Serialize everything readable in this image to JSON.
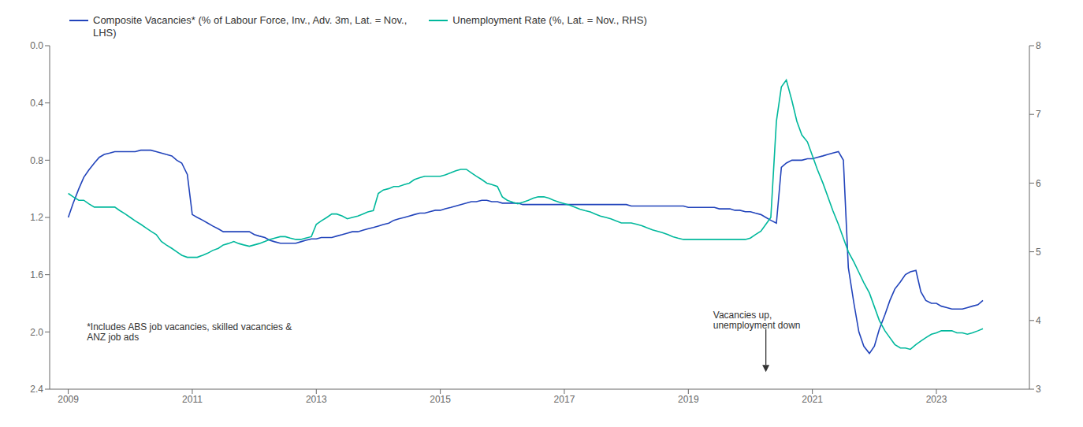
{
  "chart_data": {
    "type": "line",
    "x": [
      2009.0,
      2009.08,
      2009.17,
      2009.25,
      2009.33,
      2009.42,
      2009.5,
      2009.58,
      2009.67,
      2009.75,
      2009.83,
      2009.92,
      2010.0,
      2010.08,
      2010.17,
      2010.25,
      2010.33,
      2010.42,
      2010.5,
      2010.58,
      2010.67,
      2010.75,
      2010.83,
      2010.92,
      2011.0,
      2011.08,
      2011.17,
      2011.25,
      2011.33,
      2011.42,
      2011.5,
      2011.58,
      2011.67,
      2011.75,
      2011.83,
      2011.92,
      2012.0,
      2012.08,
      2012.17,
      2012.25,
      2012.33,
      2012.42,
      2012.5,
      2012.58,
      2012.67,
      2012.75,
      2012.83,
      2012.92,
      2013.0,
      2013.08,
      2013.17,
      2013.25,
      2013.33,
      2013.42,
      2013.5,
      2013.58,
      2013.67,
      2013.75,
      2013.83,
      2013.92,
      2014.0,
      2014.08,
      2014.17,
      2014.25,
      2014.33,
      2014.42,
      2014.5,
      2014.58,
      2014.67,
      2014.75,
      2014.83,
      2014.92,
      2015.0,
      2015.08,
      2015.17,
      2015.25,
      2015.33,
      2015.42,
      2015.5,
      2015.58,
      2015.67,
      2015.75,
      2015.83,
      2015.92,
      2016.0,
      2016.08,
      2016.17,
      2016.25,
      2016.33,
      2016.42,
      2016.5,
      2016.58,
      2016.67,
      2016.75,
      2016.83,
      2016.92,
      2017.0,
      2017.08,
      2017.17,
      2017.25,
      2017.33,
      2017.42,
      2017.5,
      2017.58,
      2017.67,
      2017.75,
      2017.83,
      2017.92,
      2018.0,
      2018.08,
      2018.17,
      2018.25,
      2018.33,
      2018.42,
      2018.5,
      2018.58,
      2018.67,
      2018.75,
      2018.83,
      2018.92,
      2019.0,
      2019.08,
      2019.17,
      2019.25,
      2019.33,
      2019.42,
      2019.5,
      2019.58,
      2019.67,
      2019.75,
      2019.83,
      2019.92,
      2020.0,
      2020.08,
      2020.17,
      2020.25,
      2020.33,
      2020.42,
      2020.5,
      2020.58,
      2020.67,
      2020.75,
      2020.83,
      2020.92,
      2021.0,
      2021.08,
      2021.17,
      2021.25,
      2021.33,
      2021.42,
      2021.5,
      2021.58,
      2021.67,
      2021.75,
      2021.83,
      2021.92,
      2022.0,
      2022.08,
      2022.17,
      2022.25,
      2022.33,
      2022.42,
      2022.5,
      2022.58,
      2022.67,
      2022.75,
      2022.83,
      2022.92,
      2023.0,
      2023.08,
      2023.17,
      2023.25,
      2023.33,
      2023.42,
      2023.5,
      2023.58,
      2023.67,
      2023.75
    ],
    "xlim": [
      2008.7,
      2024.5
    ],
    "xticks": [
      2009,
      2011,
      2013,
      2015,
      2017,
      2019,
      2021,
      2023
    ],
    "ylim": [
      2.4,
      0.0
    ],
    "yticks": [
      {
        "value": 0.0,
        "label": "0.0"
      },
      0.4,
      0.8,
      1.2,
      1.6,
      {
        "value": 2.0,
        "label": "2.0"
      },
      2.4
    ],
    "y2lim": [
      3,
      8
    ],
    "y2ticks": [
      3,
      4,
      5,
      6,
      7,
      8
    ],
    "grid": false,
    "legend": "top",
    "series": [
      {
        "name": "Composite Vacancies* (% of Labour Force, Inv., Adv. 3m, Lat. = Nov.,\nLHS)",
        "color": "#2244bb",
        "values": [
          1.2,
          1.1,
          1.0,
          0.92,
          0.87,
          0.82,
          0.78,
          0.76,
          0.75,
          0.74,
          0.74,
          0.74,
          0.74,
          0.74,
          0.73,
          0.73,
          0.73,
          0.74,
          0.75,
          0.76,
          0.77,
          0.8,
          0.82,
          0.9,
          1.18,
          1.2,
          1.22,
          1.24,
          1.26,
          1.28,
          1.3,
          1.3,
          1.3,
          1.3,
          1.3,
          1.3,
          1.32,
          1.33,
          1.34,
          1.36,
          1.37,
          1.38,
          1.38,
          1.38,
          1.38,
          1.37,
          1.36,
          1.35,
          1.35,
          1.34,
          1.34,
          1.34,
          1.33,
          1.32,
          1.31,
          1.3,
          1.3,
          1.29,
          1.28,
          1.27,
          1.26,
          1.25,
          1.24,
          1.22,
          1.21,
          1.2,
          1.19,
          1.18,
          1.17,
          1.17,
          1.16,
          1.15,
          1.15,
          1.14,
          1.13,
          1.12,
          1.11,
          1.1,
          1.09,
          1.09,
          1.08,
          1.08,
          1.09,
          1.09,
          1.1,
          1.1,
          1.1,
          1.1,
          1.11,
          1.11,
          1.11,
          1.11,
          1.11,
          1.11,
          1.11,
          1.11,
          1.11,
          1.11,
          1.11,
          1.11,
          1.11,
          1.11,
          1.11,
          1.11,
          1.11,
          1.11,
          1.11,
          1.11,
          1.11,
          1.12,
          1.12,
          1.12,
          1.12,
          1.12,
          1.12,
          1.12,
          1.12,
          1.12,
          1.12,
          1.12,
          1.13,
          1.13,
          1.13,
          1.13,
          1.13,
          1.13,
          1.14,
          1.14,
          1.14,
          1.15,
          1.15,
          1.16,
          1.16,
          1.17,
          1.18,
          1.2,
          1.22,
          1.24,
          0.85,
          0.82,
          0.8,
          0.8,
          0.8,
          0.79,
          0.79,
          0.78,
          0.77,
          0.76,
          0.75,
          0.74,
          0.8,
          1.55,
          1.8,
          2.0,
          2.1,
          2.15,
          2.1,
          1.98,
          1.88,
          1.78,
          1.7,
          1.65,
          1.6,
          1.58,
          1.57,
          1.72,
          1.78,
          1.8,
          1.8,
          1.82,
          1.83,
          1.84,
          1.84,
          1.84,
          1.83,
          1.82,
          1.81,
          1.78
        ]
      },
      {
        "name": "Unemployment Rate (%, Lat. = Nov., RHS)",
        "color": "#00b89c",
        "axis": "y2",
        "values": [
          5.85,
          5.8,
          5.75,
          5.75,
          5.7,
          5.65,
          5.65,
          5.65,
          5.65,
          5.65,
          5.6,
          5.55,
          5.5,
          5.45,
          5.4,
          5.35,
          5.3,
          5.25,
          5.15,
          5.1,
          5.05,
          5.0,
          4.95,
          4.92,
          4.92,
          4.92,
          4.95,
          4.98,
          5.02,
          5.05,
          5.1,
          5.12,
          5.15,
          5.12,
          5.1,
          5.08,
          5.1,
          5.12,
          5.15,
          5.18,
          5.2,
          5.22,
          5.22,
          5.2,
          5.18,
          5.18,
          5.2,
          5.22,
          5.4,
          5.45,
          5.5,
          5.55,
          5.55,
          5.52,
          5.48,
          5.5,
          5.52,
          5.55,
          5.58,
          5.6,
          5.85,
          5.9,
          5.92,
          5.95,
          5.95,
          5.98,
          6.0,
          6.05,
          6.08,
          6.1,
          6.1,
          6.1,
          6.1,
          6.12,
          6.15,
          6.18,
          6.2,
          6.2,
          6.15,
          6.1,
          6.05,
          6.0,
          5.98,
          5.95,
          5.8,
          5.75,
          5.72,
          5.7,
          5.72,
          5.75,
          5.78,
          5.8,
          5.8,
          5.78,
          5.75,
          5.72,
          5.7,
          5.68,
          5.65,
          5.62,
          5.6,
          5.58,
          5.55,
          5.52,
          5.5,
          5.48,
          5.45,
          5.42,
          5.42,
          5.42,
          5.4,
          5.38,
          5.35,
          5.32,
          5.3,
          5.28,
          5.25,
          5.22,
          5.2,
          5.18,
          5.18,
          5.18,
          5.18,
          5.18,
          5.18,
          5.18,
          5.18,
          5.18,
          5.18,
          5.18,
          5.18,
          5.18,
          5.2,
          5.25,
          5.3,
          5.4,
          5.5,
          6.9,
          7.4,
          7.5,
          7.2,
          6.9,
          6.7,
          6.6,
          6.4,
          6.2,
          6.0,
          5.8,
          5.6,
          5.4,
          5.2,
          5.0,
          4.85,
          4.7,
          4.55,
          4.4,
          4.2,
          4.0,
          3.85,
          3.75,
          3.65,
          3.6,
          3.6,
          3.58,
          3.65,
          3.7,
          3.75,
          3.8,
          3.82,
          3.85,
          3.85,
          3.85,
          3.82,
          3.82,
          3.8,
          3.82,
          3.85,
          3.88
        ]
      }
    ],
    "annotations": [
      {
        "text": "*Includes ABS job vacancies, skilled vacancies &\nANZ job ads",
        "x": 2009.3,
        "y": 1.93
      },
      {
        "text": "Vacancies up,\nunemployment down",
        "x": 2019.4,
        "y": 1.85,
        "arrow": {
          "x": 2020.25,
          "y_start": 1.98,
          "y_end": 2.28
        }
      }
    ]
  }
}
